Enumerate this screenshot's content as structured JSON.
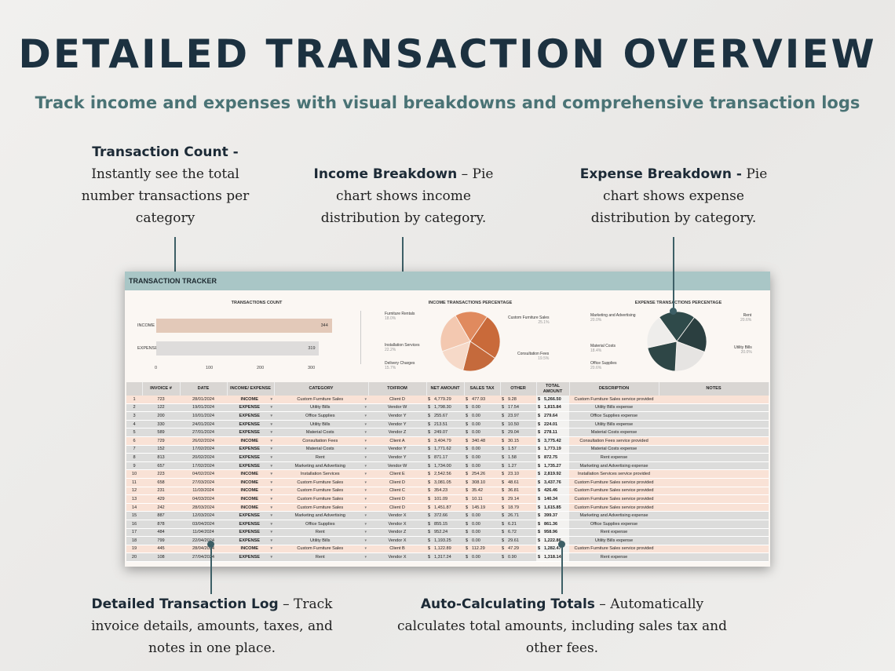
{
  "header": {
    "title": "DETAILED TRANSACTION OVERVIEW",
    "subtitle": "Track income and expenses with visual breakdowns and comprehensive transaction logs"
  },
  "callouts": {
    "count": {
      "title": "Transaction Count -",
      "lines": [
        "Instantly see the total",
        "number transactions per",
        "category"
      ]
    },
    "income": {
      "title": "Income Breakdown",
      "rest": " – Pie",
      "lines": [
        "chart shows income",
        "distribution by category."
      ]
    },
    "expense": {
      "title": "Expense Breakdown -",
      "rest": " Pie",
      "lines": [
        "chart shows expense",
        "distribution by category."
      ]
    },
    "log": {
      "title": "Detailed Transaction Log",
      "rest": " – Track",
      "lines": [
        "invoice details, amounts, taxes, and",
        "notes in one place."
      ]
    },
    "totals": {
      "title": "Auto-Calculating Totals",
      "rest": " – Automatically",
      "lines": [
        "calculates total amounts, including sales tax and",
        "other fees."
      ]
    }
  },
  "colors": {
    "accent": "#3d5f66",
    "title": "#1c3140",
    "subtitle": "#4a7375",
    "income_bar": "#e3c9b9",
    "expense_bar": "#dedcdb",
    "sheet_header": "#a9c6c6",
    "income_row": "#f9e2d6",
    "expense_row": "#dcdcdb"
  },
  "sheet": {
    "title": "TRANSACTION TRACKER",
    "count_chart_title": "TRANSACTIONS COUNT",
    "income_chart_title": "INCOME TRANSACTIONS PERCENTAGE",
    "expense_chart_title": "EXPENSE TRANSACTIONS PERCENTAGE"
  },
  "chart_data": [
    {
      "type": "bar",
      "title": "TRANSACTIONS COUNT",
      "categories": [
        "INCOME",
        "EXPENSE"
      ],
      "values": [
        344,
        319
      ],
      "xlim": [
        0,
        400
      ],
      "xticks": [
        "0",
        "100",
        "200",
        "300"
      ]
    },
    {
      "type": "pie",
      "title": "INCOME TRANSACTIONS PERCENTAGE",
      "slices": [
        {
          "label": "Furniture Rentals",
          "pct": "18.0%",
          "value": 18.0,
          "color": "#e08a5e"
        },
        {
          "label": "Custom Furniture Sales",
          "pct": "25.1%",
          "value": 25.1,
          "color": "#c96a3a"
        },
        {
          "label": "Consultation Fees",
          "pct": "19.5%",
          "value": 19.5,
          "color": "#c56a3c"
        },
        {
          "label": "Delivery Charges",
          "pct": "15.7%",
          "value": 15.7,
          "color": "#f6d9c8"
        },
        {
          "label": "Installation Services",
          "pct": "22.2%",
          "value": 22.2,
          "color": "#f3c8b0"
        }
      ]
    },
    {
      "type": "pie",
      "title": "EXPENSE TRANSACTIONS PERCENTAGE",
      "slices": [
        {
          "label": "Marketing and Advertising",
          "pct": "20.0%",
          "value": 20.0,
          "color": "#2f4a4a"
        },
        {
          "label": "Rent",
          "pct": "20.6%",
          "value": 20.6,
          "color": "#2b3f40"
        },
        {
          "label": "Utility Bills",
          "pct": "20.0%",
          "value": 20.0,
          "color": "#e6e4e2"
        },
        {
          "label": "Office Supplies",
          "pct": "20.6%",
          "value": 20.6,
          "color": "#2e4646"
        },
        {
          "label": "Material Costs",
          "pct": "18.4%",
          "value": 18.4,
          "color": "#eeedeb"
        }
      ]
    }
  ],
  "table": {
    "headers": [
      "",
      "INVOICE #",
      "DATE",
      "INCOME/ EXPENSE",
      "CATEGORY",
      "TO/FROM",
      "NET AMOUNT",
      "SALES TAX",
      "OTHER",
      "TOTAL AMOUNT",
      "DESCRIPTION",
      "NOTES"
    ],
    "rows": [
      [
        "1",
        "723",
        "28/01/2024",
        "INCOME",
        "Custom Furniture Sales",
        "Client D",
        "4,779.29",
        "477.93",
        "9.28",
        "5,266.50",
        "Custom Furniture Sales service provided"
      ],
      [
        "2",
        "122",
        "19/01/2024",
        "EXPENSE",
        "Utility Bills",
        "Vendor W",
        "1,798.30",
        "0.00",
        "17.54",
        "1,815.84",
        "Utility Bills expense"
      ],
      [
        "3",
        "200",
        "10/01/2024",
        "EXPENSE",
        "Office Supplies",
        "Vendor Y",
        "255.67",
        "0.00",
        "23.97",
        "279.64",
        "Office Supplies expense"
      ],
      [
        "4",
        "330",
        "24/01/2024",
        "EXPENSE",
        "Utility Bills",
        "Vendor Y",
        "213.51",
        "0.00",
        "10.50",
        "224.01",
        "Utility Bills expense"
      ],
      [
        "5",
        "589",
        "27/01/2024",
        "EXPENSE",
        "Material Costs",
        "Vendor Z",
        "249.07",
        "0.00",
        "29.04",
        "278.11",
        "Material Costs expense"
      ],
      [
        "6",
        "729",
        "26/02/2024",
        "INCOME",
        "Consultation Fees",
        "Client A",
        "3,404.79",
        "340.48",
        "30.15",
        "3,775.42",
        "Consultation Fees service provided"
      ],
      [
        "7",
        "152",
        "17/02/2024",
        "EXPENSE",
        "Material Costs",
        "Vendor Y",
        "1,771.62",
        "0.00",
        "1.57",
        "1,773.19",
        "Material Costs expense"
      ],
      [
        "8",
        "813",
        "20/02/2024",
        "EXPENSE",
        "Rent",
        "Vendor Y",
        "871.17",
        "0.00",
        "1.58",
        "872.75",
        "Rent expense"
      ],
      [
        "9",
        "657",
        "17/02/2024",
        "EXPENSE",
        "Marketing and Advertising",
        "Vendor W",
        "1,734.00",
        "0.00",
        "1.27",
        "1,735.27",
        "Marketing and Advertising expense"
      ],
      [
        "10",
        "223",
        "04/02/2024",
        "INCOME",
        "Installation Services",
        "Client E",
        "2,542.56",
        "254.26",
        "23.10",
        "2,819.92",
        "Installation Services service provided"
      ],
      [
        "11",
        "658",
        "27/03/2024",
        "INCOME",
        "Custom Furniture Sales",
        "Client D",
        "3,081.05",
        "308.10",
        "48.61",
        "3,437.76",
        "Custom Furniture Sales service provided"
      ],
      [
        "12",
        "231",
        "11/03/2024",
        "INCOME",
        "Custom Furniture Sales",
        "Client C",
        "354.23",
        "35.42",
        "36.81",
        "426.46",
        "Custom Furniture Sales service provided"
      ],
      [
        "13",
        "429",
        "04/03/2024",
        "INCOME",
        "Custom Furniture Sales",
        "Client D",
        "101.09",
        "10.11",
        "29.14",
        "140.34",
        "Custom Furniture Sales service provided"
      ],
      [
        "14",
        "242",
        "28/03/2024",
        "INCOME",
        "Custom Furniture Sales",
        "Client D",
        "1,451.87",
        "145.19",
        "18.79",
        "1,615.85",
        "Custom Furniture Sales service provided"
      ],
      [
        "15",
        "887",
        "12/03/2024",
        "EXPENSE",
        "Marketing and Advertising",
        "Vendor X",
        "372.66",
        "0.00",
        "26.71",
        "399.37",
        "Marketing and Advertising expense"
      ],
      [
        "16",
        "878",
        "03/04/2024",
        "EXPENSE",
        "Office Supplies",
        "Vendor X",
        "855.15",
        "0.00",
        "6.21",
        "861.36",
        "Office Supplies expense"
      ],
      [
        "17",
        "484",
        "11/04/2024",
        "EXPENSE",
        "Rent",
        "Vendor Z",
        "952.24",
        "0.00",
        "6.72",
        "958.96",
        "Rent expense"
      ],
      [
        "18",
        "799",
        "22/04/2024",
        "EXPENSE",
        "Utility Bills",
        "Vendor X",
        "1,193.25",
        "0.00",
        "29.61",
        "1,222.86",
        "Utility Bills expense"
      ],
      [
        "19",
        "445",
        "28/04/2024",
        "INCOME",
        "Custom Furniture Sales",
        "Client B",
        "1,122.89",
        "112.29",
        "47.29",
        "1,282.47",
        "Custom Furniture Sales service provided"
      ],
      [
        "20",
        "108",
        "27/04/2024",
        "EXPENSE",
        "Rent",
        "Vendor X",
        "1,317.24",
        "0.00",
        "0.90",
        "1,318.14",
        "Rent expense"
      ]
    ]
  }
}
